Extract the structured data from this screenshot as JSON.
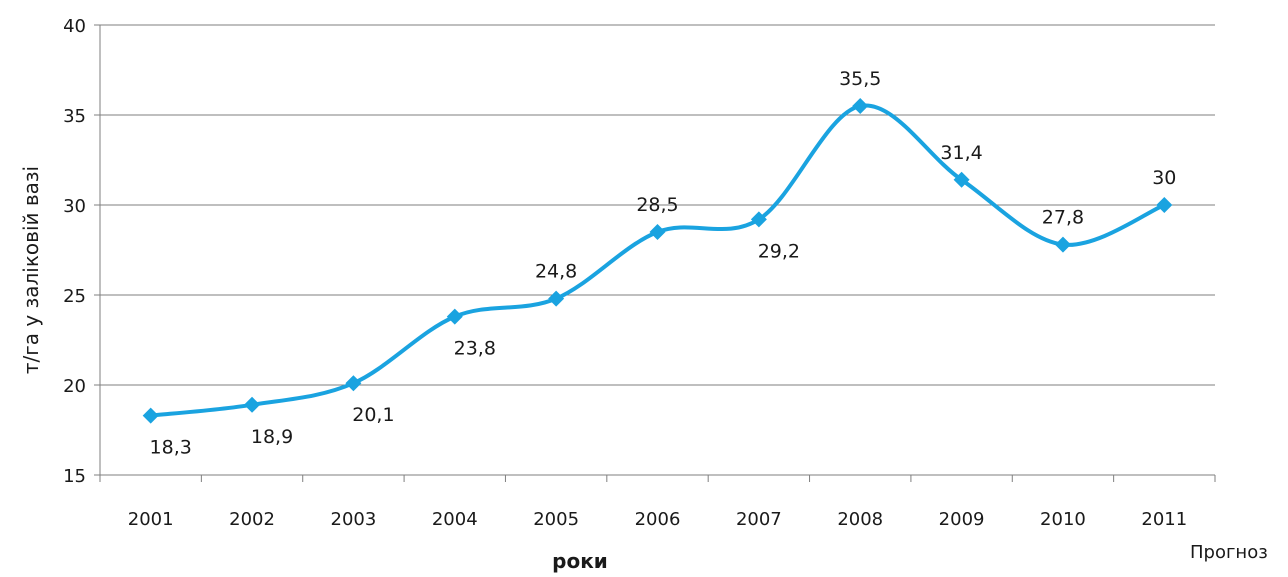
{
  "chart_data": {
    "type": "line",
    "title": "",
    "xlabel": "роки",
    "ylabel": "т/га у заліковій  вазі",
    "ylim": [
      15,
      40
    ],
    "yticks": [
      15,
      20,
      25,
      30,
      35,
      40
    ],
    "grid": true,
    "smooth": true,
    "x": [
      "2001",
      "2002",
      "2003",
      "2004",
      "2005",
      "2006",
      "2007",
      "2008",
      "2009",
      "2010",
      "2011"
    ],
    "note": "Прогноз",
    "series": [
      {
        "color": "#1aa3e0",
        "marker": "diamond",
        "values": [
          18.3,
          18.9,
          20.1,
          23.8,
          24.8,
          28.5,
          29.2,
          35.5,
          31.4,
          27.8,
          30
        ],
        "labels": [
          "18,3",
          "18,9",
          "20,1",
          "23,8",
          "24,8",
          "28,5",
          "29,2",
          "35,5",
          "31,4",
          "27,8",
          "30"
        ],
        "label_pos": [
          "below",
          "below",
          "below",
          "below",
          "above",
          "above",
          "below",
          "above",
          "above",
          "above",
          "above"
        ]
      }
    ]
  }
}
